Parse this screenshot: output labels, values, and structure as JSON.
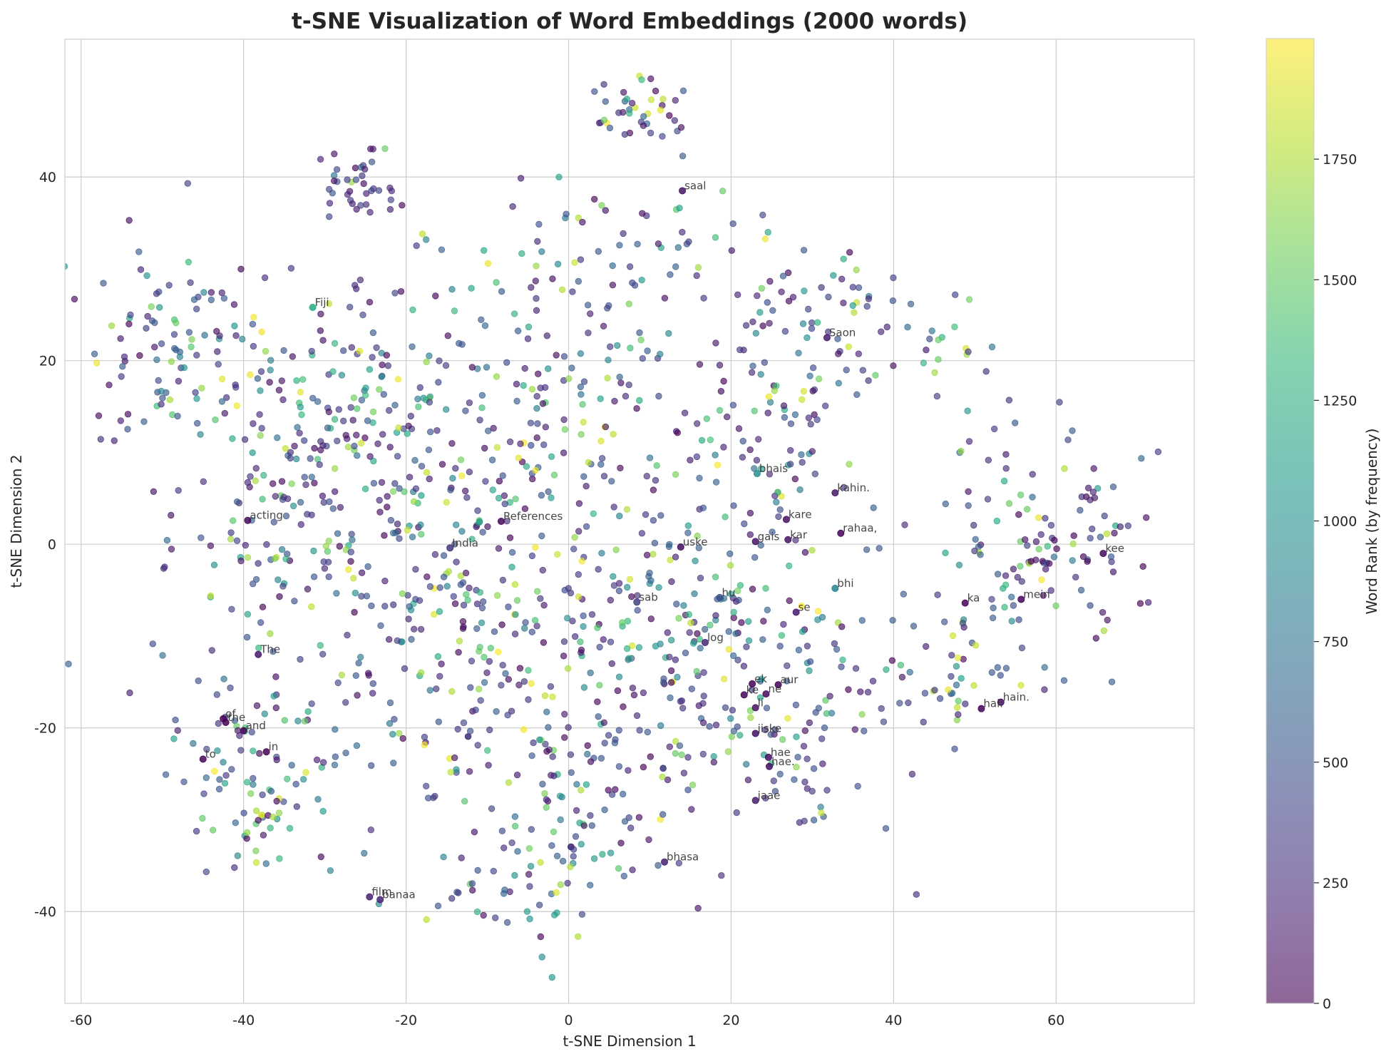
{
  "chart_data": {
    "type": "scatter",
    "title": "t-SNE Visualization of Word Embeddings (2000 words)",
    "xlabel": "t-SNE Dimension 1",
    "ylabel": "t-SNE Dimension 2",
    "xlim": [
      -62,
      77
    ],
    "ylim": [
      -50,
      55
    ],
    "xticks": [
      -60,
      -40,
      -20,
      0,
      20,
      40,
      60
    ],
    "yticks": [
      -40,
      -20,
      0,
      20,
      40
    ],
    "xtick_labels": [
      "-60",
      "-40",
      "-20",
      "0",
      "20",
      "40",
      "60"
    ],
    "ytick_labels": [
      "-40",
      "-20",
      "0",
      "20",
      "40"
    ],
    "grid": true,
    "colormap": "viridis",
    "colorbar": {
      "label": "Word Rank (by frequency)",
      "min": 0,
      "max": 2000,
      "ticks": [
        0,
        250,
        500,
        750,
        1000,
        1250,
        1500,
        1750
      ],
      "tick_labels": [
        "0",
        "250",
        "500",
        "750",
        "1000",
        "1250",
        "1500",
        "1750"
      ]
    },
    "colors": [
      "#440154",
      "#482878",
      "#3e4989",
      "#31688e",
      "#26828e",
      "#1f9e89",
      "#35b779",
      "#6ece58",
      "#b5de2b",
      "#fde725"
    ],
    "point_count_note_hidden": false,
    "labeled_points": [
      {
        "word": "saal",
        "x": 14.0,
        "y": 38.5,
        "rank": 100
      },
      {
        "word": "Fiji",
        "x": -31.5,
        "y": 25.8,
        "rank": 1200
      },
      {
        "word": "Saon",
        "x": 31.8,
        "y": 22.5,
        "rank": 150
      },
      {
        "word": "bhais",
        "x": 23.2,
        "y": 7.7,
        "rank": 1000
      },
      {
        "word": "kahin.",
        "x": 32.8,
        "y": 5.6,
        "rank": 120
      },
      {
        "word": "acting",
        "x": -39.5,
        "y": 2.6,
        "rank": 60
      },
      {
        "word": "References",
        "x": -8.3,
        "y": 2.5,
        "rank": 40
      },
      {
        "word": "kare",
        "x": 26.8,
        "y": 2.7,
        "rank": 80
      },
      {
        "word": "rahaa,",
        "x": 33.5,
        "y": 1.2,
        "rank": 10
      },
      {
        "word": "kar",
        "x": 27.0,
        "y": 0.5,
        "rank": 90
      },
      {
        "word": "gais",
        "x": 23.0,
        "y": 0.3,
        "rank": 110
      },
      {
        "word": "uske",
        "x": 13.8,
        "y": -0.3,
        "rank": 70
      },
      {
        "word": "India",
        "x": -14.6,
        "y": -0.4,
        "rank": 300
      },
      {
        "word": "kee",
        "x": 65.8,
        "y": -1.0,
        "rank": 50
      },
      {
        "word": "bhi",
        "x": 32.8,
        "y": -4.8,
        "rank": 900
      },
      {
        "word": "hu",
        "x": 18.6,
        "y": -5.8,
        "rank": 500
      },
      {
        "word": "sab",
        "x": 8.4,
        "y": -6.3,
        "rank": 400
      },
      {
        "word": "ka",
        "x": 48.8,
        "y": -6.4,
        "rank": 20
      },
      {
        "word": "mein",
        "x": 55.7,
        "y": -6.0,
        "rank": 30
      },
      {
        "word": "se",
        "x": 28.0,
        "y": -7.4,
        "rank": 140
      },
      {
        "word": "log",
        "x": 16.8,
        "y": -10.7,
        "rank": 200
      },
      {
        "word": "The",
        "x": -38.2,
        "y": -12.0,
        "rank": 130
      },
      {
        "word": "ek",
        "x": 22.6,
        "y": -15.2,
        "rank": 25
      },
      {
        "word": "aur",
        "x": 25.8,
        "y": -15.3,
        "rank": 15
      },
      {
        "word": "ke",
        "x": 21.6,
        "y": -16.4,
        "rank": 35
      },
      {
        "word": "ne",
        "x": 24.3,
        "y": -16.3,
        "rank": 45
      },
      {
        "word": "hain.",
        "x": 53.2,
        "y": -17.2,
        "rank": 55
      },
      {
        "word": "li",
        "x": 23.0,
        "y": -17.8,
        "rank": 95
      },
      {
        "word": "hai.",
        "x": 50.8,
        "y": -17.9,
        "rank": 12
      },
      {
        "word": "of",
        "x": -42.5,
        "y": -19.0,
        "rank": 5
      },
      {
        "word": "the",
        "x": -42.2,
        "y": -19.4,
        "rank": 3
      },
      {
        "word": "and",
        "x": -40.0,
        "y": -20.3,
        "rank": 8
      },
      {
        "word": "jiske",
        "x": 23.0,
        "y": -20.6,
        "rank": 85
      },
      {
        "word": "in",
        "x": -37.2,
        "y": -22.6,
        "rank": 18
      },
      {
        "word": "to",
        "x": -45.0,
        "y": -23.4,
        "rank": 22
      },
      {
        "word": "hae",
        "x": 24.6,
        "y": -23.2,
        "rank": 65
      },
      {
        "word": "hae.",
        "x": 24.7,
        "y": -24.2,
        "rank": 75
      },
      {
        "word": "jaae",
        "x": 23.0,
        "y": -27.9,
        "rank": 160
      },
      {
        "word": "bhasa",
        "x": 11.8,
        "y": -34.6,
        "rank": 170
      },
      {
        "word": "film",
        "x": -24.5,
        "y": -38.4,
        "rank": 180
      },
      {
        "word": "banaa",
        "x": -23.2,
        "y": -38.7,
        "rank": 190
      }
    ]
  }
}
